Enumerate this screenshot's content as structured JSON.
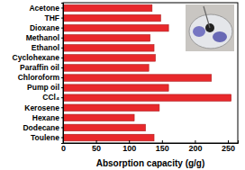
{
  "chart_data": {
    "type": "bar",
    "orientation": "horizontal",
    "categories": [
      "Acetone",
      "THF",
      "Dioxane",
      "Methanol",
      "Ethanol",
      "Cyclohexane",
      "Paraffin oil",
      "Chloroform",
      "Pump oil",
      "CCl₄",
      "Kerosene",
      "Hexane",
      "Dodecane",
      "Toulene"
    ],
    "values": [
      135,
      148,
      160,
      132,
      138,
      140,
      130,
      225,
      160,
      255,
      146,
      108,
      125,
      138
    ],
    "color": "#e8282b",
    "xlabel": "Absorption capacity (g/g)",
    "xlim": [
      0,
      265
    ],
    "xticks": [
      0,
      50,
      100,
      150,
      200,
      250
    ],
    "grid": false
  }
}
